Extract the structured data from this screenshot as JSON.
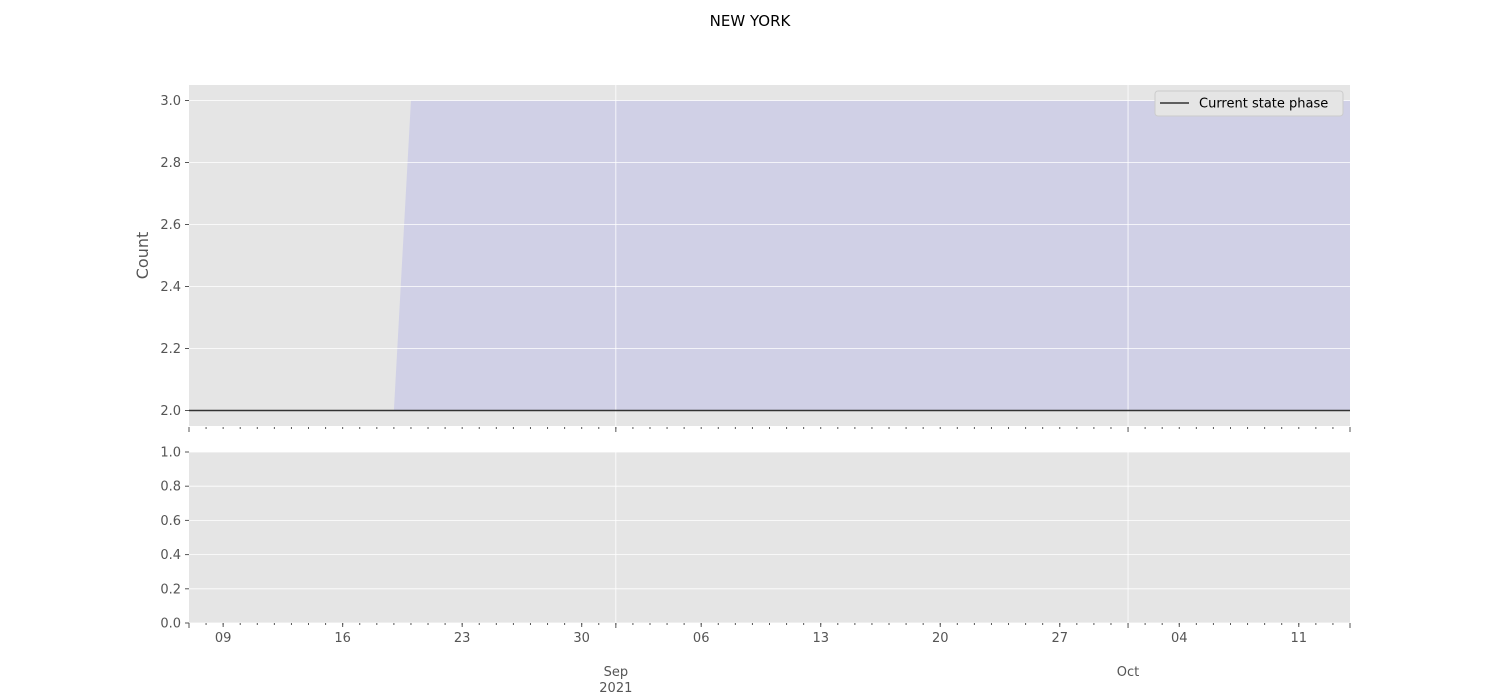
{
  "chart_data": [
    {
      "type": "area",
      "title": "NEW YORK",
      "ylabel": "Count",
      "ylim": [
        1.95,
        3.05
      ],
      "yticks": [
        2.0,
        2.2,
        2.4,
        2.6,
        2.8,
        3.0
      ],
      "ytick_labels": [
        "2.0",
        "2.2",
        "2.4",
        "2.6",
        "2.8",
        "3.0"
      ],
      "grid": true,
      "legend": {
        "placement": "top-right",
        "entries": [
          "Current state phase"
        ]
      },
      "xlim": [
        "2021-08-07",
        "2021-10-14"
      ],
      "shaded_region": {
        "x": [
          "2021-08-07",
          "2021-08-19",
          "2021-08-20",
          "2021-10-14"
        ],
        "lower": [
          2.0,
          2.0,
          2.0,
          2.0
        ],
        "upper": [
          2.0,
          2.0,
          3.0,
          3.0
        ]
      },
      "series": [
        {
          "name": "Current state phase",
          "x": [
            "2021-08-07",
            "2021-10-14"
          ],
          "values": [
            2.0,
            2.0
          ]
        }
      ]
    },
    {
      "type": "line",
      "ylim": [
        0.0,
        1.0
      ],
      "yticks": [
        0.0,
        0.2,
        0.4,
        0.6,
        0.8,
        1.0
      ],
      "ytick_labels": [
        "0.0",
        "0.2",
        "0.4",
        "0.6",
        "0.8",
        "1.0"
      ],
      "grid": true,
      "xlim": [
        "2021-08-07",
        "2021-10-14"
      ],
      "x_minor_tick_labels": [
        {
          "date": "2021-08-09",
          "label": "09"
        },
        {
          "date": "2021-08-16",
          "label": "16"
        },
        {
          "date": "2021-08-23",
          "label": "23"
        },
        {
          "date": "2021-08-30",
          "label": "30"
        },
        {
          "date": "2021-09-06",
          "label": "06"
        },
        {
          "date": "2021-09-13",
          "label": "13"
        },
        {
          "date": "2021-09-20",
          "label": "20"
        },
        {
          "date": "2021-09-27",
          "label": "27"
        },
        {
          "date": "2021-10-04",
          "label": "04"
        },
        {
          "date": "2021-10-11",
          "label": "11"
        }
      ],
      "x_major_tick_labels": [
        {
          "date": "2021-09-01",
          "label": "Sep\n2021"
        },
        {
          "date": "2021-10-01",
          "label": "Oct"
        }
      ],
      "series": []
    }
  ],
  "colors": {
    "axes_background": "#e5e5e5",
    "grid": "#ffffff",
    "fill": "#d0d0e6",
    "line": "#333333",
    "legend_background": "#e5e5e5",
    "legend_border": "#cccccc"
  }
}
